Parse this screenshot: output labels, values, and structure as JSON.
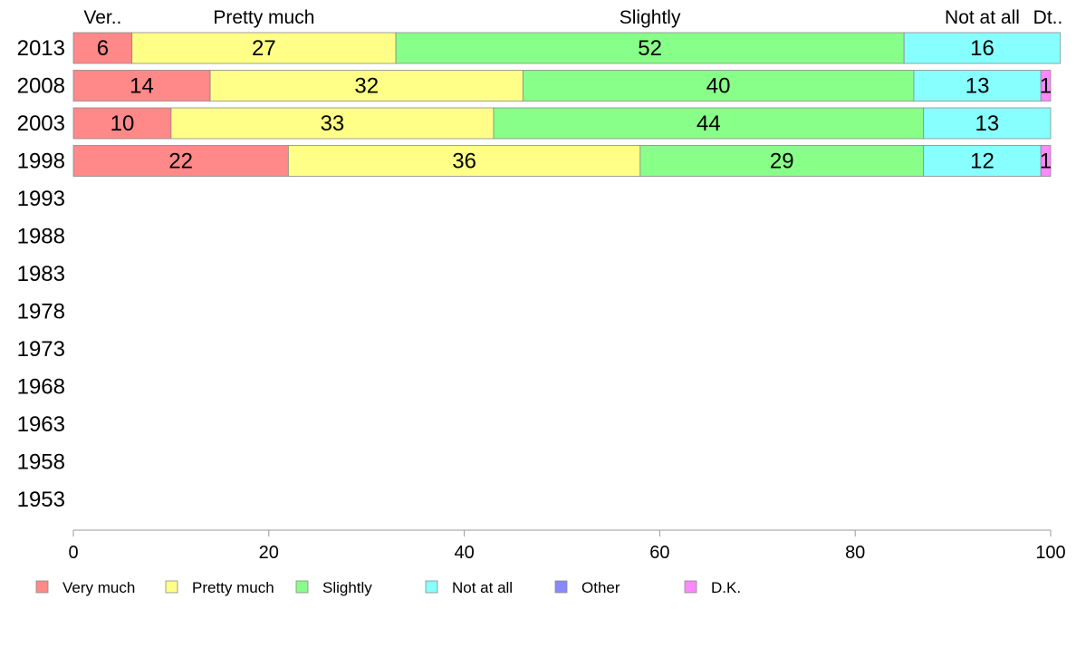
{
  "chart_data": {
    "type": "bar",
    "orientation": "horizontal",
    "stacked": true,
    "categories": [
      "2013",
      "2008",
      "2003",
      "1998",
      "1993",
      "1988",
      "1983",
      "1978",
      "1973",
      "1968",
      "1963",
      "1958",
      "1953"
    ],
    "series": [
      {
        "name": "Very much",
        "color": "#ff8888",
        "values": [
          6,
          14,
          10,
          22,
          null,
          null,
          null,
          null,
          null,
          null,
          null,
          null,
          null
        ]
      },
      {
        "name": "Pretty much",
        "color": "#ffff88",
        "values": [
          27,
          32,
          33,
          36,
          null,
          null,
          null,
          null,
          null,
          null,
          null,
          null,
          null
        ]
      },
      {
        "name": "Slightly",
        "color": "#88ff88",
        "values": [
          52,
          40,
          44,
          29,
          null,
          null,
          null,
          null,
          null,
          null,
          null,
          null,
          null
        ]
      },
      {
        "name": "Not at all",
        "color": "#88ffff",
        "values": [
          16,
          13,
          13,
          12,
          null,
          null,
          null,
          null,
          null,
          null,
          null,
          null,
          null
        ]
      },
      {
        "name": "Other",
        "color": "#8888ff",
        "values": [
          0,
          0,
          0,
          0,
          null,
          null,
          null,
          null,
          null,
          null,
          null,
          null,
          null
        ]
      },
      {
        "name": "D.K.",
        "color": "#ff88ff",
        "values": [
          0,
          1,
          0,
          1,
          null,
          null,
          null,
          null,
          null,
          null,
          null,
          null,
          null
        ]
      }
    ],
    "top_labels": [
      "Ver..",
      "Pretty much",
      "Slightly",
      "Not at all",
      "",
      "Dt.."
    ],
    "xlim": [
      0,
      100
    ],
    "xticks": [
      0,
      20,
      40,
      60,
      80,
      100
    ],
    "grid": false,
    "legend_position": "bottom"
  }
}
